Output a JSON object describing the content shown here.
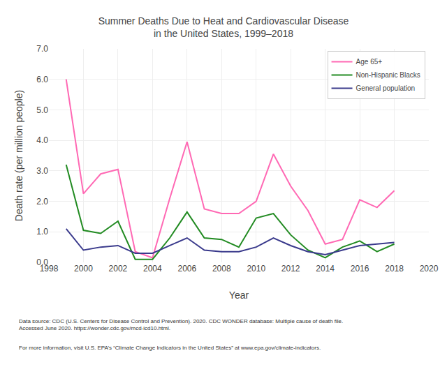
{
  "chart_data": {
    "type": "line",
    "title": "Summer Deaths Due to Heat and Cardiovascular Disease\nin the United States, 1999–2018",
    "xlabel": "Year",
    "ylabel": "Death rate (per million people)",
    "x": [
      1999,
      2000,
      2001,
      2002,
      2003,
      2004,
      2005,
      2006,
      2007,
      2008,
      2009,
      2010,
      2011,
      2012,
      2013,
      2014,
      2015,
      2016,
      2017,
      2018
    ],
    "series": [
      {
        "name": "Age 65+",
        "color": "#ff69b4",
        "values": [
          6.0,
          2.25,
          2.9,
          3.05,
          0.35,
          0.15,
          2.1,
          3.95,
          1.75,
          1.6,
          1.6,
          2.0,
          3.55,
          2.5,
          1.7,
          0.6,
          0.75,
          2.05,
          1.8,
          2.35
        ]
      },
      {
        "name": "Non-Hispanic Blacks",
        "color": "#228B22",
        "values": [
          3.2,
          1.05,
          0.95,
          1.35,
          0.1,
          0.1,
          0.8,
          1.65,
          0.8,
          0.75,
          0.5,
          1.45,
          1.6,
          0.9,
          0.4,
          0.15,
          0.5,
          0.7,
          0.35,
          0.6
        ]
      },
      {
        "name": "General population",
        "color": "#3a3a8c",
        "values": [
          1.1,
          0.4,
          0.5,
          0.55,
          0.3,
          0.3,
          0.55,
          0.8,
          0.4,
          0.35,
          0.35,
          0.5,
          0.8,
          0.55,
          0.35,
          0.25,
          0.4,
          0.55,
          0.6,
          0.65
        ]
      }
    ],
    "xlim": [
      1998,
      2020
    ],
    "xticks": [
      1998,
      2000,
      2002,
      2004,
      2006,
      2008,
      2010,
      2012,
      2014,
      2016,
      2018,
      2020
    ],
    "ylim": [
      0.0,
      7.0
    ],
    "yticks": [
      {
        "value": 0.0,
        "label": "0.0"
      },
      {
        "value": 1.0,
        "label": "1.0"
      },
      {
        "value": 2.0,
        "label": "2.0"
      },
      {
        "value": 3.0,
        "label": "3.0"
      },
      {
        "value": 4.0,
        "label": "4.0"
      },
      {
        "value": 5.0,
        "label": "5.0"
      },
      {
        "value": 6.0,
        "label": "6.0"
      },
      {
        "value": 7.0,
        "label": "7.0"
      }
    ],
    "grid": true,
    "legend": "upper right",
    "annotations": [
      "Data source: CDC (U.S. Centers for Disease Control and Prevention). 2020. CDC WONDER database: Multiple cause of death file.\nAccessed June 2020. https://wonder.cdc.gov/mcd-icd10.html.",
      "For more information, visit U.S. EPA’s “Climate Change Indicators in the United States” at www.epa.gov/climate-indicators."
    ]
  }
}
